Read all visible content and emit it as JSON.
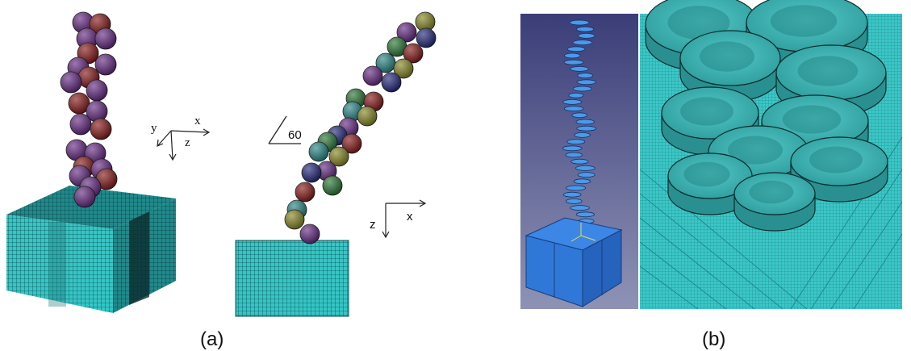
{
  "panel_a": {
    "caption": "(a)",
    "axes_iso": {
      "x": "x",
      "y": "y",
      "z": "z"
    },
    "axes_side": {
      "z": "z",
      "x": "x"
    },
    "angle_label": "60"
  },
  "panel_b": {
    "caption": "(b)"
  },
  "colors": {
    "mesh_cyan": "#35c6c6",
    "mesh_line": "#0e4f52",
    "blue_model": "#2f78d8",
    "blue_bg": "#3d3f7a",
    "sphere_purple": "#6a2f86",
    "sphere_olive": "#8a8a2a",
    "sphere_teal": "#2f8a8a",
    "sphere_red": "#8a1f1f",
    "sphere_green": "#2f7a3a",
    "sphere_navy": "#2a2f80"
  }
}
